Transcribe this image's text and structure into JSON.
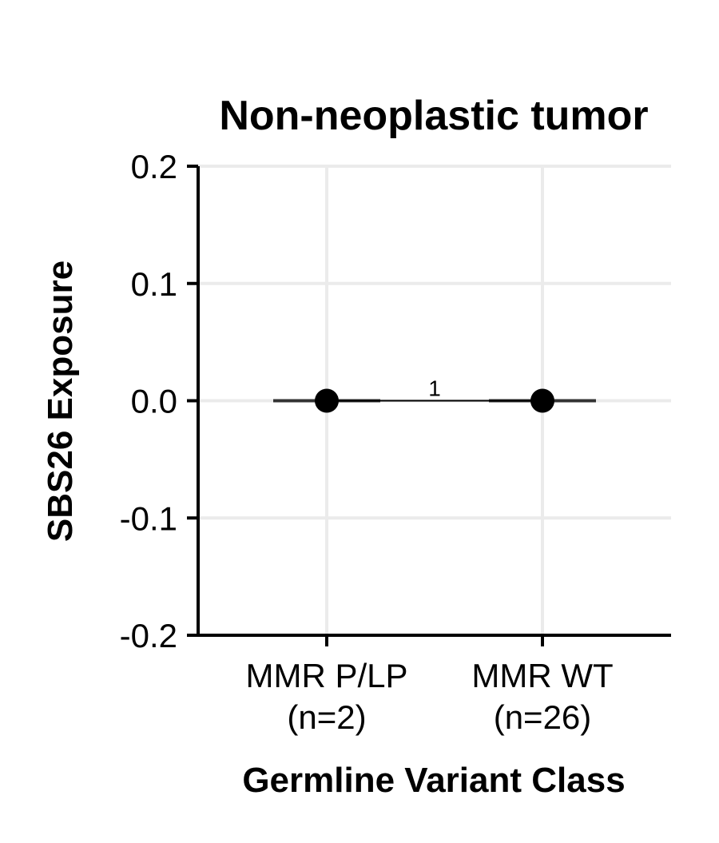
{
  "chart_data": {
    "type": "scatter",
    "title": "Non-neoplastic tumor",
    "xlabel": "Germline Variant Class",
    "ylabel": "SBS26 Exposure",
    "categories": [
      "MMR P/LP\n(n=2)",
      "MMR WT\n(n=26)"
    ],
    "series": [
      {
        "values": [
          0.0,
          0.0
        ],
        "color": "#000000"
      }
    ],
    "ranges": [
      [
        -0.04,
        0.04
      ],
      [
        -0.04,
        0.04
      ]
    ],
    "ylim": [
      -0.2,
      0.2
    ],
    "yticks": [
      "0.2",
      "0.1",
      "0.0",
      "-0.1",
      "-0.2"
    ],
    "ytick_values": [
      0.2,
      0.1,
      0.0,
      -0.1,
      -0.2
    ],
    "grid": true,
    "comparison": {
      "label": "1",
      "y": 0.0
    }
  }
}
